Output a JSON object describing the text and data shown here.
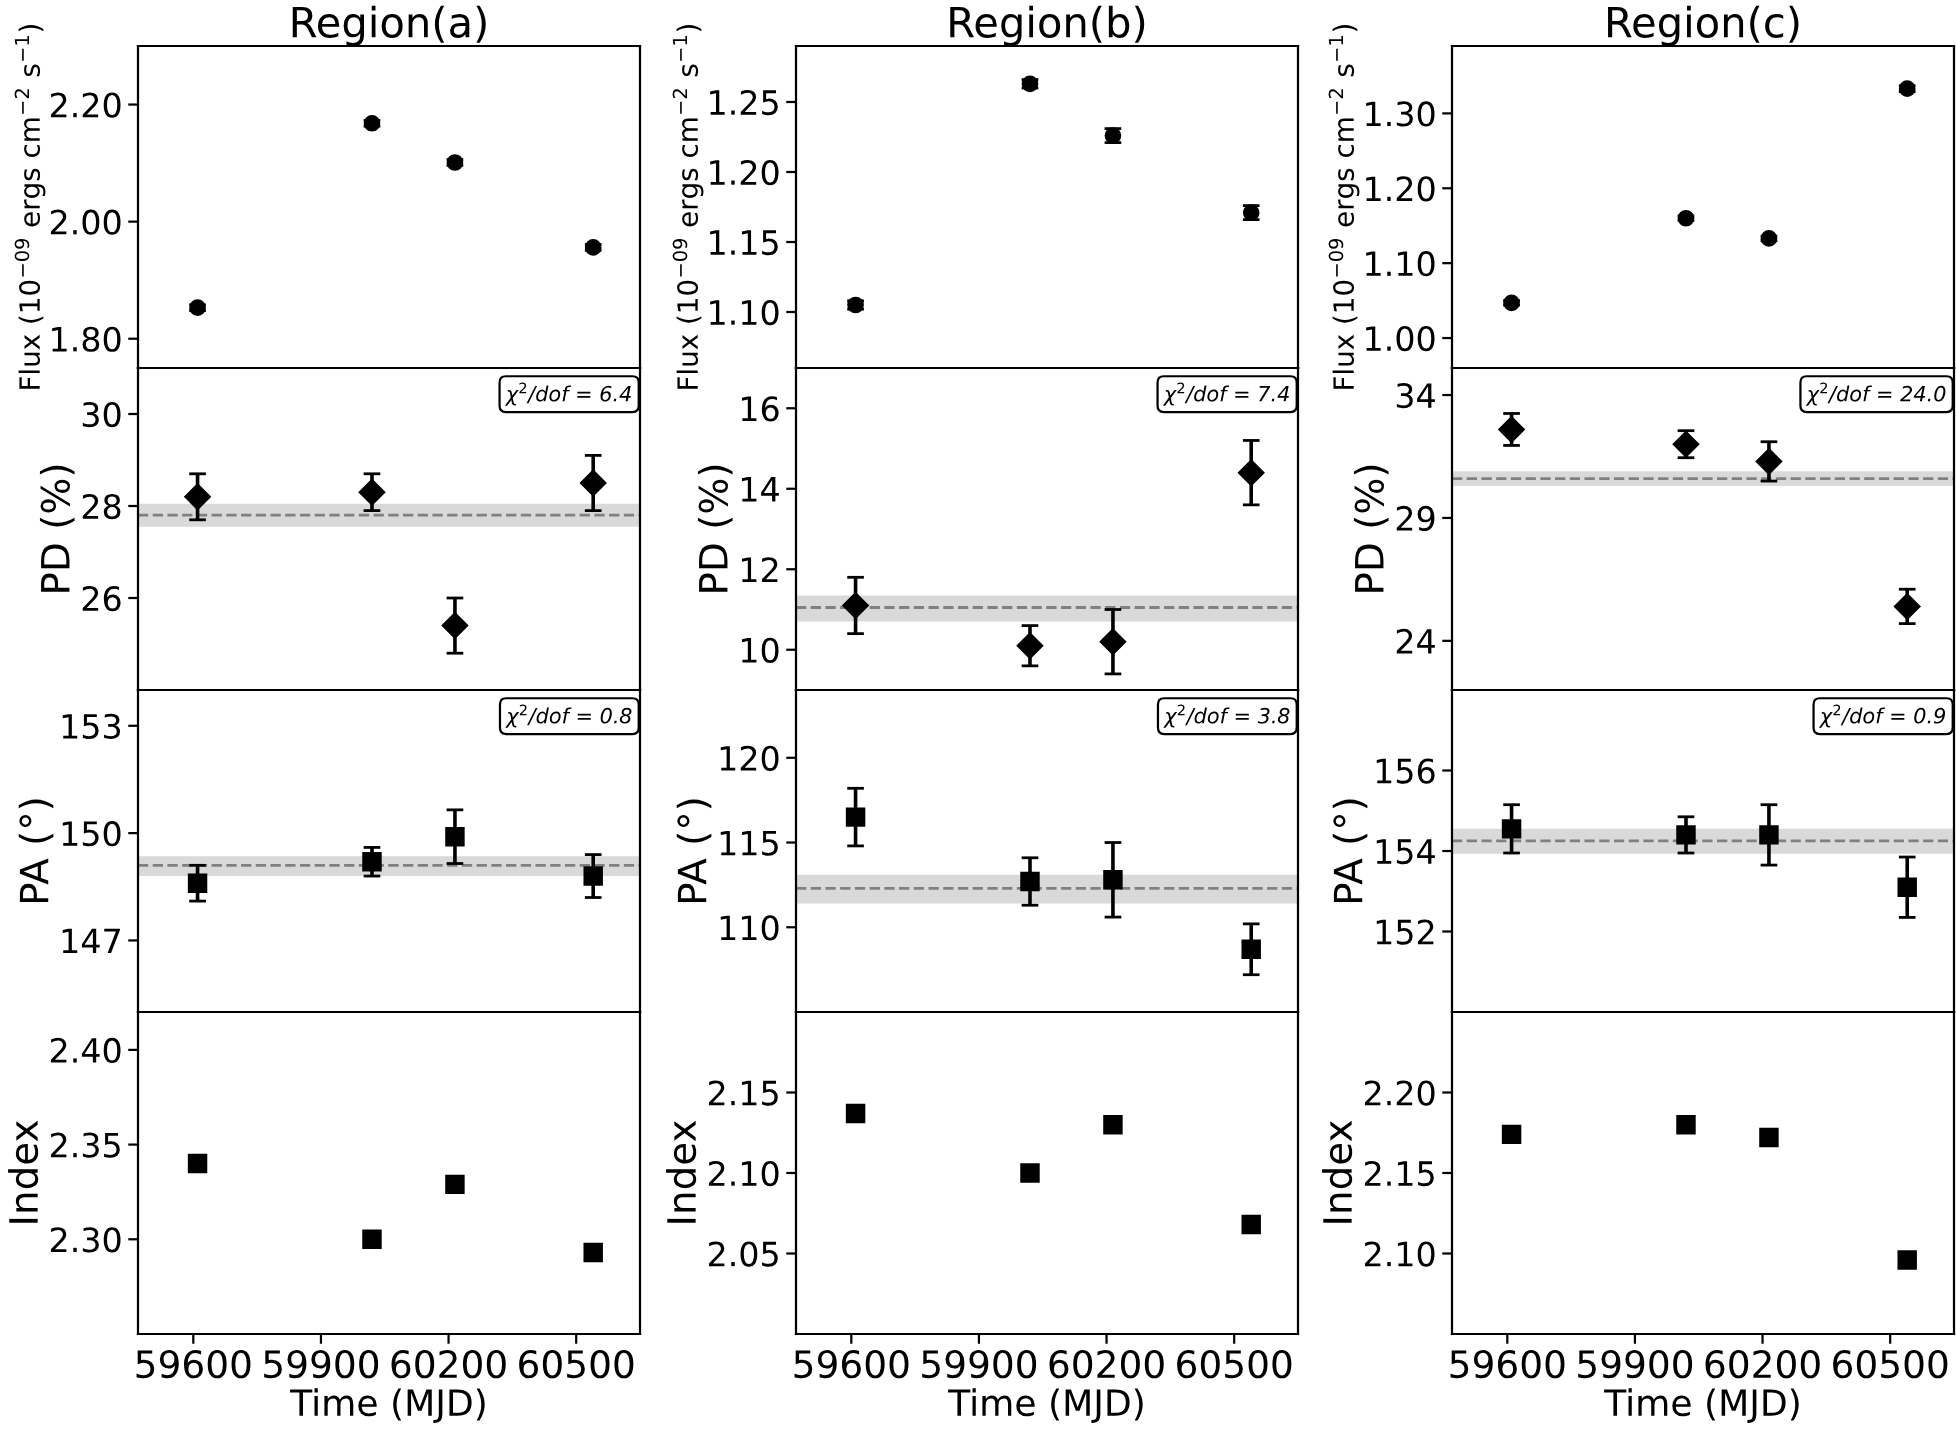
{
  "chart_data": [
    {
      "type": "scatter",
      "title": "Region(a)",
      "ylabel": "Flux (10$^{−09}$ ergs cm$^{−2}$ s$^{−1}$)",
      "marker": "circle",
      "tick_labels": "y",
      "grid": false,
      "x": [
        59610,
        60020,
        60215,
        60540
      ],
      "xlim": [
        59470,
        60650
      ],
      "xticks": [
        59600,
        59900,
        60200,
        60500
      ],
      "ylim": [
        1.75,
        2.3
      ],
      "yticks": [
        {
          "value": 1.8,
          "label": "1.80"
        },
        {
          "value": 2.0,
          "label": "2.00"
        },
        {
          "value": 2.2,
          "label": "2.20"
        }
      ],
      "series": [
        {
          "color": "#000000",
          "values": [
            1.853,
            2.168,
            2.101,
            1.956
          ],
          "errors": [
            0.005,
            0.005,
            0.005,
            0.005
          ]
        }
      ]
    },
    {
      "type": "scatter",
      "title": "Region(b)",
      "ylabel": "Flux (10$^{−09}$ ergs cm$^{−2}$ s$^{−1}$)",
      "marker": "circle",
      "tick_labels": "y",
      "grid": false,
      "x": [
        59610,
        60020,
        60215,
        60540
      ],
      "xlim": [
        59470,
        60650
      ],
      "xticks": [
        59600,
        59900,
        60200,
        60500
      ],
      "ylim": [
        1.06,
        1.29
      ],
      "yticks": [
        {
          "value": 1.1,
          "label": "1.10"
        },
        1.15,
        {
          "value": 1.2,
          "label": "1.20"
        },
        1.25
      ],
      "series": [
        {
          "color": "#000000",
          "values": [
            1.105,
            1.263,
            1.226,
            1.171
          ],
          "errors": [
            0.003,
            0.003,
            0.005,
            0.005
          ]
        }
      ]
    },
    {
      "type": "scatter",
      "title": "Region(c)",
      "ylabel": "Flux (10$^{−09}$ ergs cm$^{−2}$ s$^{−1}$)",
      "marker": "circle",
      "tick_labels": "y",
      "grid": false,
      "x": [
        59610,
        60020,
        60215,
        60540
      ],
      "xlim": [
        59470,
        60650
      ],
      "xticks": [
        59600,
        59900,
        60200,
        60500
      ],
      "ylim": [
        0.96,
        1.39
      ],
      "yticks": [
        {
          "value": 1.0,
          "label": "1.00"
        },
        {
          "value": 1.1,
          "label": "1.10"
        },
        {
          "value": 1.2,
          "label": "1.20"
        },
        {
          "value": 1.3,
          "label": "1.30"
        }
      ],
      "series": [
        {
          "color": "#000000",
          "values": [
            1.047,
            1.16,
            1.133,
            1.333
          ],
          "errors": [
            0.003,
            0.003,
            0.003,
            0.004
          ]
        }
      ]
    },
    {
      "type": "scatter",
      "ylabel": "PD (%)",
      "marker": "diamond",
      "tick_labels": "y",
      "grid": false,
      "x": [
        59610,
        60020,
        60215,
        60540
      ],
      "xlim": [
        59470,
        60650
      ],
      "xticks": [
        59600,
        59900,
        60200,
        60500
      ],
      "ylim": [
        24,
        31
      ],
      "yticks": [
        26,
        28,
        30
      ],
      "annotations": [
        "χ$^{2}$/dof = 6.4"
      ],
      "ref_lines": [
        {
          "axis": "y",
          "value": 27.8,
          "color": "#808080",
          "line_style": "dashed"
        }
      ],
      "bands": [
        {
          "axis": "y",
          "from": 27.55,
          "to": 28.05,
          "color": "#d9d9d9"
        }
      ],
      "series": [
        {
          "color": "#000000",
          "values": [
            28.2,
            28.3,
            25.4,
            28.5
          ],
          "errors": [
            0.5,
            0.4,
            0.6,
            0.6
          ]
        }
      ]
    },
    {
      "type": "scatter",
      "ylabel": "PD (%)",
      "marker": "diamond",
      "tick_labels": "y",
      "grid": false,
      "x": [
        59610,
        60020,
        60215,
        60540
      ],
      "xlim": [
        59470,
        60650
      ],
      "xticks": [
        59600,
        59900,
        60200,
        60500
      ],
      "ylim": [
        9,
        17
      ],
      "yticks": [
        10,
        12,
        14,
        16
      ],
      "annotations": [
        "χ$^{2}$/dof = 7.4"
      ],
      "ref_lines": [
        {
          "axis": "y",
          "value": 11.05,
          "color": "#808080",
          "line_style": "dashed"
        }
      ],
      "bands": [
        {
          "axis": "y",
          "from": 10.7,
          "to": 11.35,
          "color": "#d9d9d9"
        }
      ],
      "series": [
        {
          "color": "#000000",
          "values": [
            11.1,
            10.1,
            10.2,
            14.4
          ],
          "errors": [
            0.7,
            0.5,
            0.8,
            0.8
          ]
        }
      ]
    },
    {
      "type": "scatter",
      "ylabel": "PD (%)",
      "marker": "diamond",
      "tick_labels": "y",
      "grid": false,
      "x": [
        59610,
        60020,
        60215,
        60540
      ],
      "xlim": [
        59470,
        60650
      ],
      "xticks": [
        59600,
        59900,
        60200,
        60500
      ],
      "ylim": [
        22,
        35.1
      ],
      "yticks": [
        24,
        29,
        34
      ],
      "annotations": [
        "χ$^{2}$/dof = 24.0"
      ],
      "ref_lines": [
        {
          "axis": "y",
          "value": 30.6,
          "color": "#808080",
          "line_style": "dashed"
        }
      ],
      "bands": [
        {
          "axis": "y",
          "from": 30.3,
          "to": 30.9,
          "color": "#d9d9d9"
        }
      ],
      "series": [
        {
          "color": "#000000",
          "values": [
            32.6,
            32.0,
            31.3,
            25.4
          ],
          "errors": [
            0.65,
            0.55,
            0.8,
            0.7
          ]
        }
      ]
    },
    {
      "type": "scatter",
      "ylabel": "PA (°)",
      "marker": "square",
      "tick_labels": "y",
      "grid": false,
      "x": [
        59610,
        60020,
        60215,
        60540
      ],
      "xlim": [
        59470,
        60650
      ],
      "xticks": [
        59600,
        59900,
        60200,
        60500
      ],
      "ylim": [
        145,
        154
      ],
      "yticks": [
        147,
        150,
        153
      ],
      "annotations": [
        "χ$^{2}$/dof = 0.8"
      ],
      "ref_lines": [
        {
          "axis": "y",
          "value": 149.1,
          "color": "#808080",
          "line_style": "dashed"
        }
      ],
      "bands": [
        {
          "axis": "y",
          "from": 148.8,
          "to": 149.35,
          "color": "#d9d9d9"
        }
      ],
      "series": [
        {
          "color": "#000000",
          "values": [
            148.6,
            149.2,
            149.9,
            148.8
          ],
          "errors": [
            0.5,
            0.4,
            0.75,
            0.6
          ]
        }
      ]
    },
    {
      "type": "scatter",
      "ylabel": "PA (°)",
      "marker": "square",
      "tick_labels": "y",
      "grid": false,
      "x": [
        59610,
        60020,
        60215,
        60540
      ],
      "xlim": [
        59470,
        60650
      ],
      "xticks": [
        59600,
        59900,
        60200,
        60500
      ],
      "ylim": [
        105,
        124
      ],
      "yticks": [
        110,
        115,
        120
      ],
      "annotations": [
        "χ$^{2}$/dof = 3.8"
      ],
      "ref_lines": [
        {
          "axis": "y",
          "value": 112.3,
          "color": "#808080",
          "line_style": "dashed"
        }
      ],
      "bands": [
        {
          "axis": "y",
          "from": 111.4,
          "to": 113.1,
          "color": "#d9d9d9"
        }
      ],
      "series": [
        {
          "color": "#000000",
          "values": [
            116.5,
            112.7,
            112.8,
            108.7
          ],
          "errors": [
            1.7,
            1.4,
            2.2,
            1.5
          ]
        }
      ]
    },
    {
      "type": "scatter",
      "ylabel": "PA (°)",
      "marker": "square",
      "tick_labels": "y",
      "grid": false,
      "x": [
        59610,
        60020,
        60215,
        60540
      ],
      "xlim": [
        59470,
        60650
      ],
      "xticks": [
        59600,
        59900,
        60200,
        60500
      ],
      "ylim": [
        150,
        158
      ],
      "yticks": [
        152,
        154,
        156
      ],
      "annotations": [
        "χ$^{2}$/dof = 0.9"
      ],
      "ref_lines": [
        {
          "axis": "y",
          "value": 154.25,
          "color": "#808080",
          "line_style": "dashed"
        }
      ],
      "bands": [
        {
          "axis": "y",
          "from": 153.93,
          "to": 154.55,
          "color": "#d9d9d9"
        }
      ],
      "series": [
        {
          "color": "#000000",
          "values": [
            154.55,
            154.4,
            154.4,
            153.1
          ],
          "errors": [
            0.6,
            0.45,
            0.75,
            0.75
          ]
        }
      ]
    },
    {
      "type": "scatter",
      "ylabel": "Index",
      "xlabel": "Time (MJD)",
      "marker": "square",
      "grid": false,
      "x": [
        59610,
        60020,
        60215,
        60540
      ],
      "xlim": [
        59470,
        60650
      ],
      "xticks": [
        59600,
        59900,
        60200,
        60500
      ],
      "ylim": [
        2.25,
        2.42
      ],
      "yticks": [
        {
          "value": 2.3,
          "label": "2.30"
        },
        2.35,
        {
          "value": 2.4,
          "label": "2.40"
        }
      ],
      "series": [
        {
          "color": "#000000",
          "values": [
            2.34,
            2.3,
            2.329,
            2.293
          ],
          "errors": [
            0.003,
            0.002,
            0.004,
            0.004
          ]
        }
      ]
    },
    {
      "type": "scatter",
      "ylabel": "Index",
      "xlabel": "Time (MJD)",
      "marker": "square",
      "grid": false,
      "x": [
        59610,
        60020,
        60215,
        60540
      ],
      "xlim": [
        59470,
        60650
      ],
      "xticks": [
        59600,
        59900,
        60200,
        60500
      ],
      "ylim": [
        2.0,
        2.2
      ],
      "yticks": [
        2.05,
        {
          "value": 2.1,
          "label": "2.10"
        },
        2.15
      ],
      "series": [
        {
          "color": "#000000",
          "values": [
            2.137,
            2.1,
            2.13,
            2.068
          ],
          "errors": [
            0.003,
            0.002,
            0.004,
            0.004
          ]
        }
      ]
    },
    {
      "type": "scatter",
      "ylabel": "Index",
      "xlabel": "Time (MJD)",
      "marker": "square",
      "grid": false,
      "x": [
        59610,
        60020,
        60215,
        60540
      ],
      "xlim": [
        59470,
        60650
      ],
      "xticks": [
        59600,
        59900,
        60200,
        60500
      ],
      "ylim": [
        2.05,
        2.25
      ],
      "yticks": [
        {
          "value": 2.1,
          "label": "2.10"
        },
        2.15,
        {
          "value": 2.2,
          "label": "2.20"
        }
      ],
      "series": [
        {
          "color": "#000000",
          "values": [
            2.174,
            2.18,
            2.172,
            2.096
          ],
          "errors": [
            0.003,
            0.002,
            0.004,
            0.003
          ]
        }
      ]
    }
  ]
}
